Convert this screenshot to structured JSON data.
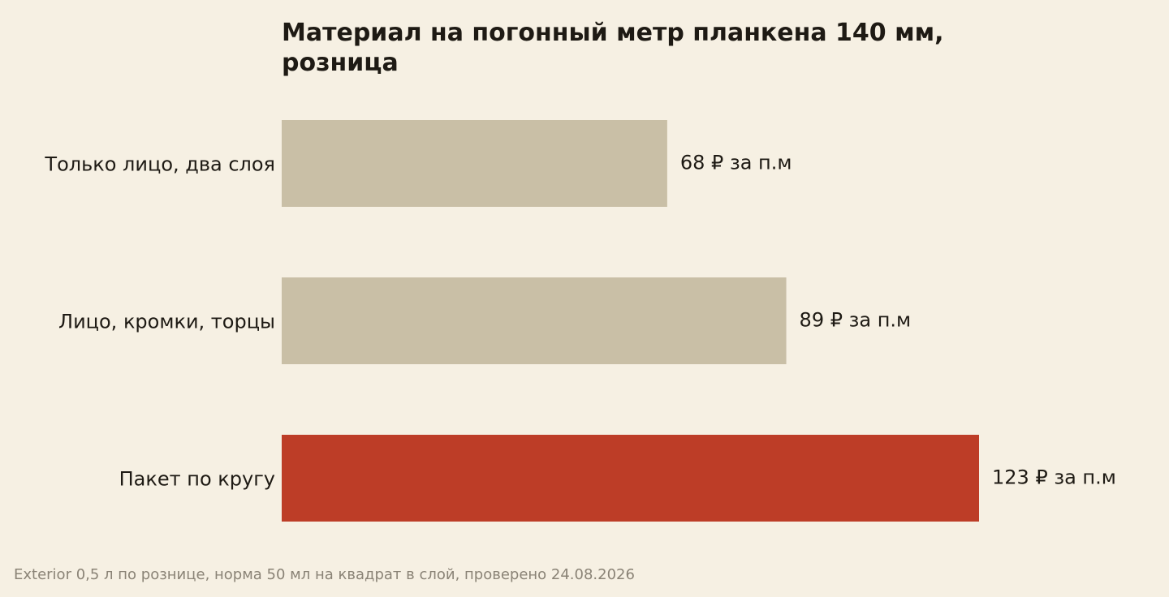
{
  "chart_data": {
    "type": "bar",
    "orientation": "horizontal",
    "title": "Материал на погонный метр планкена 140 мм, розница",
    "title_lines": [
      "Материал на погонный метр планкена 140 мм,",
      "розница"
    ],
    "categories": [
      "Только лицо, два слоя",
      "Лицо, кромки, торцы",
      "Пакет по кругу"
    ],
    "values": [
      68,
      89,
      123
    ],
    "value_labels": [
      "68 ₽ за п.м",
      "89 ₽ за п.м",
      "123 ₽ за п.м"
    ],
    "xlim": [
      0,
      123
    ],
    "grid": false,
    "legend": "none",
    "footnote": "Exterior 0,5 л по рознице, норма 50 мл на квадрат в слой, проверено 24.08.2026",
    "colors": {
      "background": "#f6f0e3",
      "bar_default": "#c9bfa6",
      "bar_highlight": "#bd3d27",
      "text": "#1e1a14",
      "footnote": "#8a8376"
    },
    "highlight_index": 2
  }
}
